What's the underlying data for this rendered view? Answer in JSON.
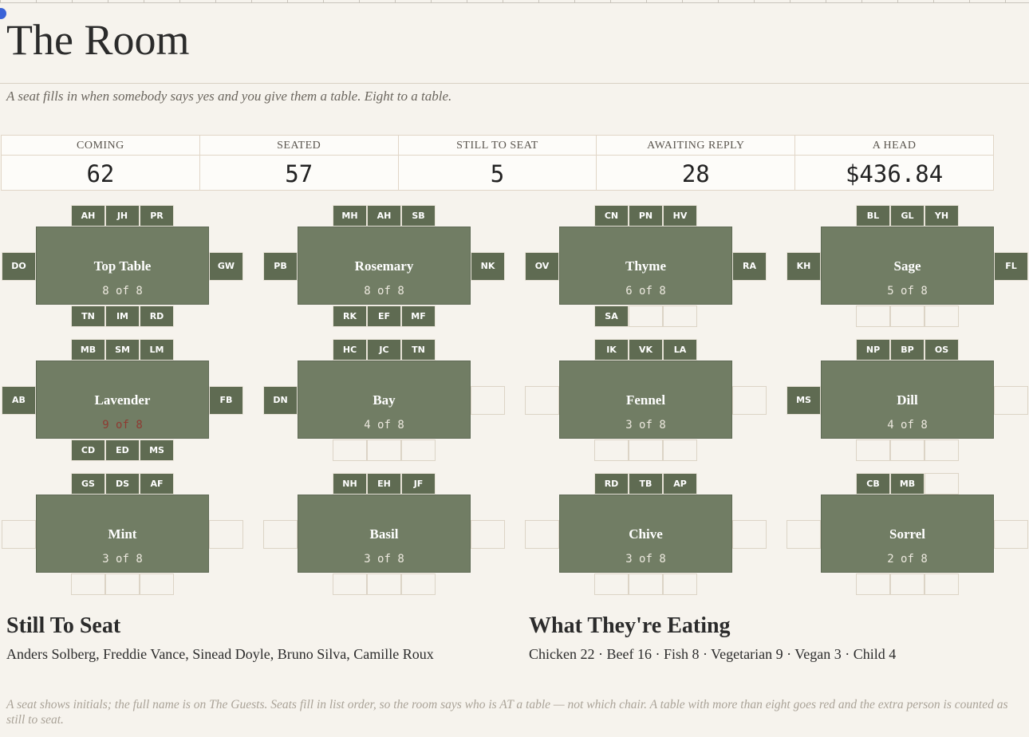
{
  "header": {
    "title": "The Room",
    "subtitle": "A seat fills in when somebody says yes and you give them a table. Eight to a table."
  },
  "stats": [
    {
      "label": "COMING",
      "value": 62
    },
    {
      "label": "SEATED",
      "value": 57
    },
    {
      "label": "STILL TO SEAT",
      "value": 5
    },
    {
      "label": "AWAITING REPLY",
      "value": 28
    },
    {
      "label": "A HEAD",
      "value": "$436.84"
    }
  ],
  "tables": [
    {
      "name": "Top Table",
      "count": "8 of 8",
      "over": false,
      "seats": [
        "AH",
        "JH",
        "PR",
        "DO",
        "GW",
        "TN",
        "IM",
        "RD"
      ]
    },
    {
      "name": "Rosemary",
      "count": "8 of 8",
      "over": false,
      "seats": [
        "MH",
        "AH",
        "SB",
        "PB",
        "NK",
        "RK",
        "EF",
        "MF"
      ]
    },
    {
      "name": "Thyme",
      "count": "6 of 8",
      "over": false,
      "seats": [
        "CN",
        "PN",
        "HV",
        "OV",
        "RA",
        "SA",
        null,
        null
      ]
    },
    {
      "name": "Sage",
      "count": "5 of 8",
      "over": false,
      "seats": [
        "BL",
        "GL",
        "YH",
        "KH",
        "FL",
        null,
        null,
        null
      ]
    },
    {
      "name": "Lavender",
      "count": "9 of 8",
      "over": true,
      "seats": [
        "MB",
        "SM",
        "LM",
        "AB",
        "FB",
        "CD",
        "ED",
        "MS"
      ]
    },
    {
      "name": "Bay",
      "count": "4 of 8",
      "over": false,
      "seats": [
        "HC",
        "JC",
        "TN",
        "DN",
        null,
        null,
        null,
        null
      ]
    },
    {
      "name": "Fennel",
      "count": "3 of 8",
      "over": false,
      "seats": [
        "IK",
        "VK",
        "LA",
        null,
        null,
        null,
        null,
        null
      ]
    },
    {
      "name": "Dill",
      "count": "4 of 8",
      "over": false,
      "seats": [
        "NP",
        "BP",
        "OS",
        "MS",
        null,
        null,
        null,
        null
      ]
    },
    {
      "name": "Mint",
      "count": "3 of 8",
      "over": false,
      "seats": [
        "GS",
        "DS",
        "AF",
        null,
        null,
        null,
        null,
        null
      ]
    },
    {
      "name": "Basil",
      "count": "3 of 8",
      "over": false,
      "seats": [
        "NH",
        "EH",
        "JF",
        null,
        null,
        null,
        null,
        null
      ]
    },
    {
      "name": "Chive",
      "count": "3 of 8",
      "over": false,
      "seats": [
        "RD",
        "TB",
        "AP",
        null,
        null,
        null,
        null,
        null
      ]
    },
    {
      "name": "Sorrel",
      "count": "2 of 8",
      "over": false,
      "seats": [
        "CB",
        "MB",
        null,
        null,
        null,
        null,
        null,
        null
      ]
    }
  ],
  "still_to_seat": {
    "title": "Still To Seat",
    "text": "Anders Solberg, Freddie Vance, Sinead Doyle, Bruno Silva, Camille Roux"
  },
  "eating": {
    "title": "What They're Eating",
    "text": "Chicken 22 · Beef 16 · Fish 8 · Vegetarian 9 · Vegan 3 · Child 4"
  },
  "footnote": "A seat shows initials; the full name is on The Guests. Seats fill in list order, so the room says who is AT a table — not which chair. A table with more than eight goes red and the extra person is counted as still to seat."
}
